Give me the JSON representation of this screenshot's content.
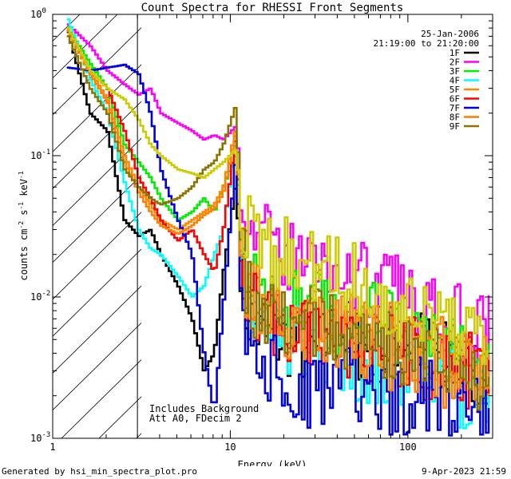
{
  "chart_data": {
    "type": "line",
    "title": "Count Spectra for RHESSI Front Segments",
    "xlabel": "Energy (keV)",
    "ylabel": "counts cm⁻² s⁻¹ keV⁻¹",
    "xscale": "log",
    "yscale": "log",
    "xlim": [
      1.0,
      300
    ],
    "ylim": [
      0.001,
      1.0
    ],
    "x_tick_labels": [
      {
        "value": 1,
        "label": "1"
      },
      {
        "value": 10,
        "label": "10"
      },
      {
        "value": 100,
        "label": "100"
      }
    ],
    "y_tick_labels": [
      {
        "value": 0.001,
        "base": "10",
        "exp": "-3"
      },
      {
        "value": 0.01,
        "base": "10",
        "exp": "-2"
      },
      {
        "value": 0.1,
        "base": "10",
        "exp": "-1"
      },
      {
        "value": 1,
        "base": "10",
        "exp": "0"
      }
    ],
    "date": "25-Jan-2006",
    "time_range": "21:19:00 to 21:20:00",
    "annotations": [
      "Includes Background",
      "Att A0, FDecim 2"
    ],
    "shaded_region": {
      "x_min": 1.0,
      "x_max": 3.0,
      "pattern": "diagonal hatch"
    },
    "series": [
      {
        "name": "1F",
        "color": "#000000",
        "x": [
          1.2,
          1.6,
          2.0,
          2.5,
          3.0,
          3.5,
          4.0,
          5.0,
          6.0,
          7.0,
          8.0,
          9.0,
          10.5,
          12.0,
          15.0,
          20.0,
          30.0,
          40.0,
          60.0,
          80.0,
          100.0,
          150.0,
          200.0,
          280.0
        ],
        "values": [
          0.75,
          0.2,
          0.15,
          0.035,
          0.027,
          0.03,
          0.02,
          0.012,
          0.007,
          0.003,
          0.004,
          0.015,
          0.06,
          0.008,
          0.005,
          0.005,
          0.004,
          0.006,
          0.004,
          0.005,
          0.005,
          0.004,
          0.003,
          0.003
        ]
      },
      {
        "name": "2F",
        "color": "#ff00ff",
        "x": [
          1.2,
          1.6,
          2.0,
          2.5,
          3.0,
          3.5,
          4.0,
          5.0,
          6.0,
          7.0,
          8.0,
          9.0,
          10.5,
          12.0,
          15.0,
          20.0,
          30.0,
          40.0,
          60.0,
          80.0,
          100.0,
          150.0,
          200.0,
          280.0
        ],
        "values": [
          0.85,
          0.6,
          0.4,
          0.32,
          0.27,
          0.3,
          0.2,
          0.17,
          0.15,
          0.13,
          0.14,
          0.13,
          0.16,
          0.04,
          0.025,
          0.02,
          0.018,
          0.015,
          0.013,
          0.011,
          0.01,
          0.009,
          0.007,
          0.006
        ]
      },
      {
        "name": "3F",
        "color": "#00ee00",
        "x": [
          1.2,
          1.6,
          2.0,
          2.5,
          3.0,
          3.5,
          4.0,
          5.0,
          6.0,
          7.0,
          8.0,
          9.0,
          10.5,
          12.0,
          15.0,
          20.0,
          30.0,
          40.0,
          60.0,
          80.0,
          100.0,
          150.0,
          200.0,
          280.0
        ],
        "values": [
          0.8,
          0.45,
          0.3,
          0.12,
          0.09,
          0.07,
          0.05,
          0.035,
          0.04,
          0.05,
          0.04,
          0.06,
          0.1,
          0.015,
          0.01,
          0.008,
          0.009,
          0.007,
          0.007,
          0.006,
          0.005,
          0.004,
          0.004,
          0.003
        ]
      },
      {
        "name": "4F",
        "color": "#00ffff",
        "x": [
          1.2,
          1.6,
          2.0,
          2.5,
          3.0,
          3.5,
          4.0,
          5.0,
          6.0,
          7.0,
          8.0,
          9.0,
          10.5,
          12.0,
          15.0,
          20.0,
          30.0,
          40.0,
          60.0,
          80.0,
          100.0,
          150.0,
          200.0,
          280.0
        ],
        "values": [
          0.92,
          0.35,
          0.2,
          0.065,
          0.03,
          0.022,
          0.02,
          0.014,
          0.01,
          0.012,
          0.02,
          0.03,
          0.12,
          0.012,
          0.006,
          0.005,
          0.004,
          0.004,
          0.003,
          0.003,
          0.003,
          0.003,
          0.002,
          0.002
        ]
      },
      {
        "name": "5F",
        "color": "#ff8800",
        "x": [
          1.2,
          1.6,
          2.0,
          2.5,
          3.0,
          3.5,
          4.0,
          5.0,
          6.0,
          7.0,
          8.0,
          9.0,
          10.5,
          12.0,
          15.0,
          20.0,
          30.0,
          40.0,
          60.0,
          80.0,
          100.0,
          150.0,
          200.0,
          280.0
        ],
        "values": [
          0.78,
          0.4,
          0.25,
          0.1,
          0.06,
          0.045,
          0.035,
          0.03,
          0.035,
          0.04,
          0.045,
          0.06,
          0.15,
          0.012,
          0.008,
          0.007,
          0.006,
          0.006,
          0.005,
          0.005,
          0.004,
          0.004,
          0.003,
          0.003
        ]
      },
      {
        "name": "6F",
        "color": "#ff0000",
        "x": [
          1.2,
          1.6,
          2.0,
          2.5,
          3.0,
          3.5,
          4.0,
          5.0,
          6.0,
          7.0,
          8.0,
          9.0,
          10.5,
          12.0,
          15.0,
          20.0,
          30.0,
          40.0,
          60.0,
          80.0,
          100.0,
          150.0,
          200.0,
          280.0
        ],
        "values": [
          0.8,
          0.4,
          0.3,
          0.15,
          0.07,
          0.05,
          0.035,
          0.025,
          0.03,
          0.02,
          0.015,
          0.03,
          0.13,
          0.01,
          0.007,
          0.006,
          0.005,
          0.005,
          0.004,
          0.004,
          0.004,
          0.003,
          0.003,
          0.003
        ]
      },
      {
        "name": "7F",
        "color": "#0000dd",
        "x": [
          1.2,
          1.6,
          2.0,
          2.5,
          3.0,
          3.5,
          4.0,
          5.0,
          6.0,
          7.0,
          8.0,
          9.0,
          10.5,
          12.0,
          15.0,
          20.0,
          30.0,
          40.0,
          60.0,
          80.0,
          100.0,
          150.0,
          200.0,
          280.0
        ],
        "values": [
          0.42,
          0.4,
          0.42,
          0.44,
          0.38,
          0.2,
          0.08,
          0.035,
          0.02,
          0.004,
          0.0015,
          0.009,
          0.09,
          0.006,
          0.003,
          0.003,
          0.002,
          0.003,
          0.002,
          0.002,
          0.002,
          0.002,
          0.0015,
          0.0015
        ]
      },
      {
        "name": "8F",
        "color": "#ff7f00",
        "x": [
          1.2,
          1.6,
          2.0,
          2.5,
          3.0,
          3.5,
          4.0,
          5.0,
          6.0,
          7.0,
          8.0,
          9.0,
          10.5,
          12.0,
          15.0,
          20.0,
          30.0,
          40.0,
          60.0,
          80.0,
          100.0,
          150.0,
          200.0,
          280.0
        ],
        "values": [
          0.76,
          0.38,
          0.24,
          0.09,
          0.055,
          0.04,
          0.032,
          0.028,
          0.032,
          0.038,
          0.042,
          0.055,
          0.14,
          0.011,
          0.007,
          0.006,
          0.006,
          0.005,
          0.005,
          0.004,
          0.004,
          0.003,
          0.003,
          0.003
        ]
      },
      {
        "name": "9F",
        "color": "#8b7500",
        "x": [
          1.2,
          1.6,
          2.0,
          2.5,
          3.0,
          3.5,
          4.0,
          5.0,
          6.0,
          7.0,
          8.0,
          9.0,
          10.5,
          12.0,
          15.0,
          20.0,
          30.0,
          40.0,
          60.0,
          80.0,
          100.0,
          150.0,
          200.0,
          280.0
        ],
        "values": [
          0.7,
          0.3,
          0.2,
          0.08,
          0.06,
          0.05,
          0.045,
          0.05,
          0.06,
          0.08,
          0.09,
          0.12,
          0.22,
          0.012,
          0.008,
          0.007,
          0.007,
          0.006,
          0.005,
          0.005,
          0.004,
          0.004,
          0.003,
          0.003
        ]
      },
      {
        "name": "",
        "color": "#cccc00",
        "x": [
          1.2,
          1.6,
          2.0,
          2.5,
          3.0,
          3.5,
          4.0,
          5.0,
          6.0,
          7.0,
          8.0,
          9.0,
          10.5,
          12.0,
          15.0,
          20.0,
          30.0,
          40.0,
          60.0,
          80.0,
          100.0,
          150.0,
          200.0,
          280.0
        ],
        "values": [
          0.8,
          0.4,
          0.3,
          0.25,
          0.18,
          0.12,
          0.1,
          0.08,
          0.075,
          0.07,
          0.08,
          0.09,
          0.11,
          0.03,
          0.025,
          0.02,
          0.016,
          0.014,
          0.012,
          0.01,
          0.008,
          0.007,
          0.006,
          0.005
        ]
      }
    ]
  },
  "footer": {
    "left": "Generated by hsi_min_spectra_plot.pro",
    "right": "9-Apr-2023 21:59"
  }
}
